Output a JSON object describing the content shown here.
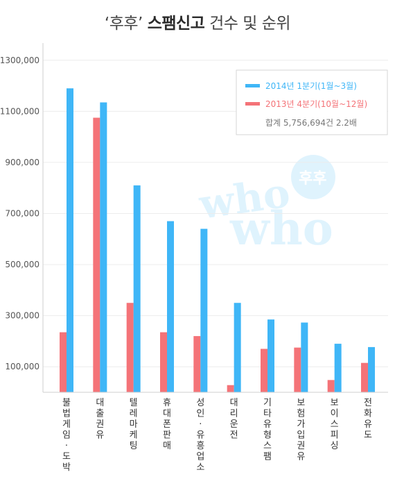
{
  "title": {
    "prefix": "‘후후’",
    "emphasis": "스팸신고",
    "suffix": "건수 및 순위"
  },
  "watermark": {
    "line1": "who",
    "badge": "후후",
    "line2": "who"
  },
  "chart_data": {
    "type": "bar",
    "categories": [
      "불법게임·도박",
      "대출권유",
      "텔레마케팅",
      "휴대폰판매",
      "성인·유흥업소",
      "대리운전",
      "기타유형스팸",
      "보험가입권유",
      "보이스피싱",
      "전화유도"
    ],
    "series": [
      {
        "name": "2013년 4분기(10월~12월)",
        "color": "#f47378",
        "values": [
          235000,
          1075000,
          350000,
          235000,
          220000,
          28000,
          170000,
          175000,
          48000,
          115000
        ]
      },
      {
        "name": "2014년 1분기(1월~3월)",
        "color": "#3fb6f7",
        "values": [
          1190000,
          1135000,
          810000,
          670000,
          640000,
          350000,
          285000,
          273000,
          190000,
          177000
        ]
      }
    ],
    "ytick_labels": [
      "100,000",
      "300,000",
      "500,000",
      "700,000",
      "900,000",
      "1100,000",
      "1300,000"
    ],
    "ytick_values": [
      100000,
      300000,
      500000,
      700000,
      900000,
      1100000,
      1300000
    ],
    "ylim": [
      0,
      1400000
    ],
    "grid": true,
    "legend": {
      "placement": "top-right",
      "note": "합계 5,756,694건 2.2배"
    }
  }
}
